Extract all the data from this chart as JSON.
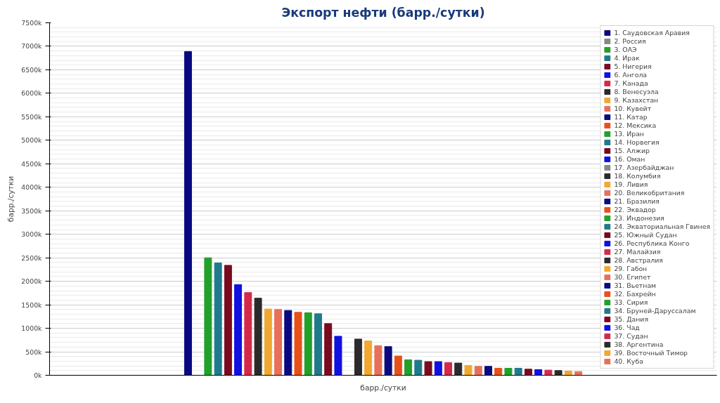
{
  "chart_data": {
    "type": "bar",
    "title": "Экспорт нефти (барр./сутки)",
    "xlabel": "барр./сутки",
    "ylabel": "барр./сутки",
    "categories": [
      null
    ],
    "series": [
      {
        "name": "1. Саудовская Аравия",
        "color": "#0a0a80",
        "values": [
          6890
        ]
      },
      {
        "name": "2. Россия",
        "color": "#888888",
        "values": [
          null
        ]
      },
      {
        "name": "3. ОАЭ",
        "color": "#22a02a",
        "values": [
          2500
        ]
      },
      {
        "name": "4. Ирак",
        "color": "#1f7a8c",
        "values": [
          2390
        ]
      },
      {
        "name": "5. Нигерия",
        "color": "#7a0a1e",
        "values": [
          2340
        ]
      },
      {
        "name": "6. Ангола",
        "color": "#1010e0",
        "values": [
          1930
        ]
      },
      {
        "name": "7. Канада",
        "color": "#d42a4a",
        "values": [
          1760
        ]
      },
      {
        "name": "8. Венесуэла",
        "color": "#2a2a2a",
        "values": [
          1640
        ]
      },
      {
        "name": "9. Казахстан",
        "color": "#f0a830",
        "values": [
          1410
        ]
      },
      {
        "name": "10. Кувейт",
        "color": "#e8705a",
        "values": [
          1400
        ]
      },
      {
        "name": "11. Катар",
        "color": "#0a0a80",
        "values": [
          1380
        ]
      },
      {
        "name": "12. Мексика",
        "color": "#e8501a",
        "values": [
          1340
        ]
      },
      {
        "name": "13. Иран",
        "color": "#22a02a",
        "values": [
          1330
        ]
      },
      {
        "name": "14. Норвегия",
        "color": "#1f7a8c",
        "values": [
          1310
        ]
      },
      {
        "name": "15. Алжир",
        "color": "#7a0a1e",
        "values": [
          1100
        ]
      },
      {
        "name": "16. Оман",
        "color": "#1010e0",
        "values": [
          830
        ]
      },
      {
        "name": "17. Азербайджан",
        "color": "#888888",
        "values": [
          null
        ]
      },
      {
        "name": "18. Колумбия",
        "color": "#2a2a2a",
        "values": [
          770
        ]
      },
      {
        "name": "19. Ливия",
        "color": "#f0a830",
        "values": [
          730
        ]
      },
      {
        "name": "20. Великобритания",
        "color": "#e8705a",
        "values": [
          630
        ]
      },
      {
        "name": "21. Бразилия",
        "color": "#0a0a80",
        "values": [
          610
        ]
      },
      {
        "name": "22. Эквадор",
        "color": "#e8501a",
        "values": [
          410
        ]
      },
      {
        "name": "23. Индонезия",
        "color": "#22a02a",
        "values": [
          330
        ]
      },
      {
        "name": "24. Экваториальная Гвинея",
        "color": "#1f7a8c",
        "values": [
          320
        ]
      },
      {
        "name": "25. Южный Судан",
        "color": "#7a0a1e",
        "values": [
          290
        ]
      },
      {
        "name": "26. Республика Конго",
        "color": "#1010e0",
        "values": [
          290
        ]
      },
      {
        "name": "27. Малайзия",
        "color": "#d42a4a",
        "values": [
          270
        ]
      },
      {
        "name": "28. Австралия",
        "color": "#2a2a2a",
        "values": [
          260
        ]
      },
      {
        "name": "29. Габон",
        "color": "#f0a830",
        "values": [
          210
        ]
      },
      {
        "name": "30. Египет",
        "color": "#e8705a",
        "values": [
          190
        ]
      },
      {
        "name": "31. Вьетнам",
        "color": "#0a0a80",
        "values": [
          190
        ]
      },
      {
        "name": "32. Бахрейн",
        "color": "#e8501a",
        "values": [
          150
        ]
      },
      {
        "name": "33. Сирия",
        "color": "#22a02a",
        "values": [
          150
        ]
      },
      {
        "name": "34. Бруней-Даруссалам",
        "color": "#1f7a8c",
        "values": [
          150
        ]
      },
      {
        "name": "35. Дания",
        "color": "#7a0a1e",
        "values": [
          130
        ]
      },
      {
        "name": "36. Чад",
        "color": "#1010e0",
        "values": [
          120
        ]
      },
      {
        "name": "37. Судан",
        "color": "#d42a4a",
        "values": [
          110
        ]
      },
      {
        "name": "38. Аргентина",
        "color": "#2a2a2a",
        "values": [
          100
        ]
      },
      {
        "name": "39. Восточный Тимор",
        "color": "#f0a830",
        "values": [
          90
        ]
      },
      {
        "name": "40. Куба",
        "color": "#e8705a",
        "values": [
          80
        ]
      }
    ],
    "ylim": [
      0,
      7500
    ],
    "yticks": [
      {
        "value": 0,
        "label": "0k"
      },
      {
        "value": 500,
        "label": "500k"
      },
      {
        "value": 1000,
        "label": "1000k"
      },
      {
        "value": 1500,
        "label": "1500k"
      },
      {
        "value": 2000,
        "label": "2000k"
      },
      {
        "value": 2500,
        "label": "2500k"
      },
      {
        "value": 3000,
        "label": "3000k"
      },
      {
        "value": 3500,
        "label": "3500k"
      },
      {
        "value": 4000,
        "label": "4000k"
      },
      {
        "value": 4500,
        "label": "4500k"
      },
      {
        "value": 5000,
        "label": "5000k"
      },
      {
        "value": 5500,
        "label": "5500k"
      },
      {
        "value": 6000,
        "label": "6000k"
      },
      {
        "value": 6500,
        "label": "6500k"
      },
      {
        "value": 7000,
        "label": "7000k"
      },
      {
        "value": 7500,
        "label": "7500k"
      }
    ],
    "grid": "y",
    "legend": "top right"
  }
}
